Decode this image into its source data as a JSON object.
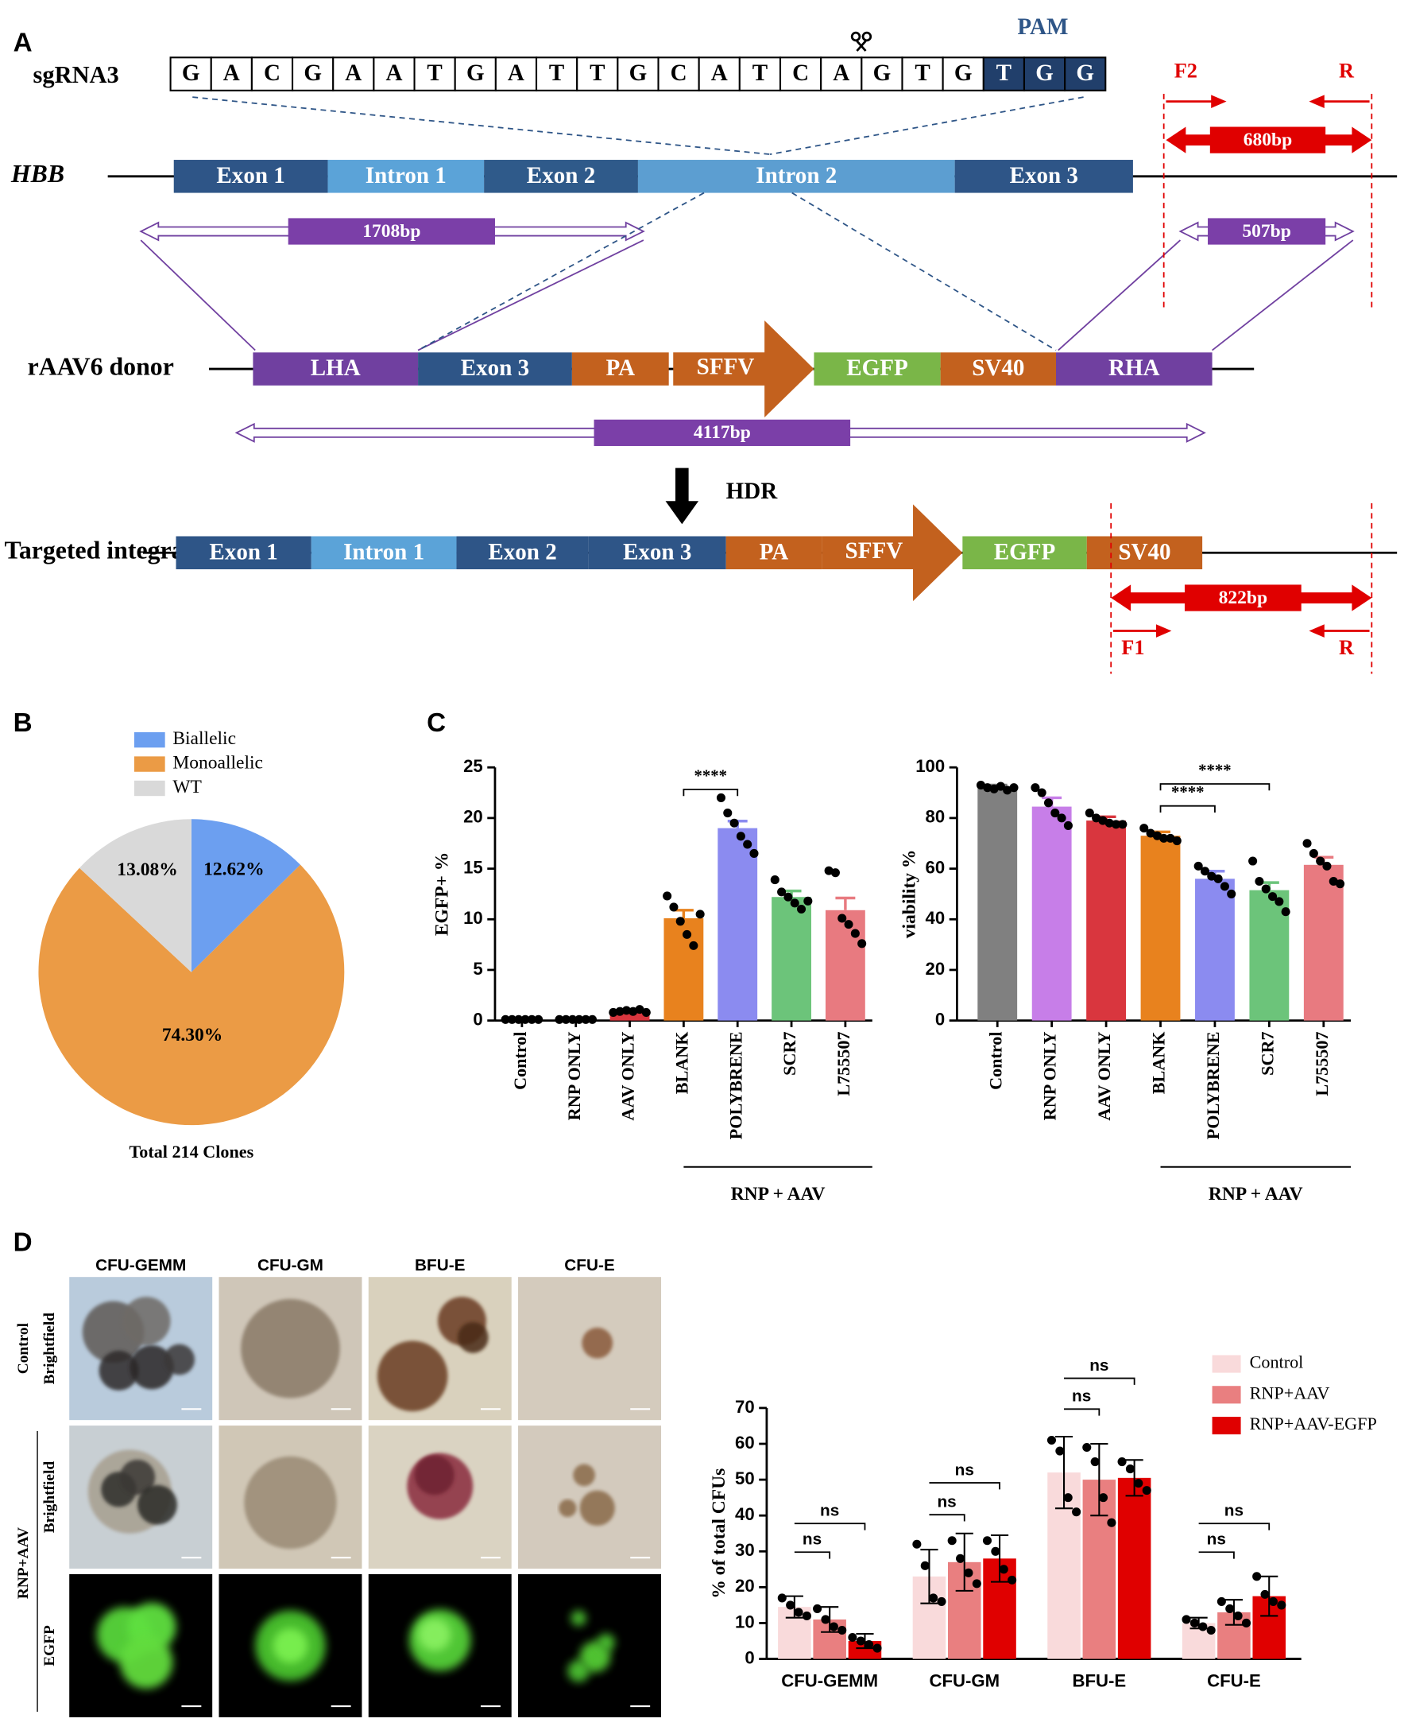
{
  "panel_labels": [
    "A",
    "B",
    "C",
    "D"
  ],
  "diagram": {
    "sgrna_label": "sgRNA3",
    "sequence": [
      "G",
      "A",
      "C",
      "G",
      "A",
      "A",
      "T",
      "G",
      "A",
      "T",
      "T",
      "G",
      "C",
      "A",
      "T",
      "C",
      "A",
      "G",
      "T",
      "G"
    ],
    "pam_sequence": [
      "T",
      "G",
      "G"
    ],
    "pam_label": "PAM",
    "hbb": {
      "label": "HBB",
      "segments": [
        "Exon 1",
        "Intron 1",
        "Exon 2",
        "Intron 2",
        "Exon 3"
      ]
    },
    "donor": {
      "label": "rAAV6 donor",
      "segments": [
        "LHA",
        "Exon 3",
        "PA",
        "SFFV",
        "EGFP",
        "SV40",
        "RHA"
      ]
    },
    "hdr_label": "HDR",
    "integration": {
      "label": "Targeted integration",
      "segments": [
        "Exon 1",
        "Intron 1",
        "Exon 2",
        "Exon 3",
        "PA",
        "SFFV",
        "EGFP",
        "SV40"
      ]
    },
    "primers_top": [
      "F2",
      "R"
    ],
    "amplicon_top": "680bp",
    "arm_lengths": [
      "1708bp",
      "507bp"
    ],
    "donor_length": "4117bp",
    "primers_bottom": [
      "F1",
      "R"
    ],
    "amplicon_bottom": "822bp"
  },
  "chart_data": [
    {
      "type": "pie",
      "categories": [
        "Biallelic",
        "Monoallelic",
        "WT"
      ],
      "values": [
        12.62,
        74.3,
        13.08
      ],
      "value_labels": [
        "12.62%",
        "74.30%",
        "13.08%"
      ],
      "colors": [
        "#6c9ff0",
        "#eb9b45",
        "#d9d9d9"
      ],
      "caption": "Total 214 Clones"
    },
    {
      "type": "bar",
      "ylabel": "EGFP+ %",
      "categories": [
        "Control",
        "RNP ONLY",
        "AAV ONLY",
        "BLANK",
        "POLYBRENE",
        "SCR7",
        "L755507"
      ],
      "values": [
        0.1,
        0.1,
        0.9,
        10.1,
        19.0,
        12.2,
        10.9
      ],
      "errors": [
        0.05,
        0.05,
        0.1,
        0.8,
        0.7,
        0.6,
        1.2
      ],
      "points": [
        [
          0.1,
          0.1,
          0.1,
          0.1,
          0.1,
          0.1
        ],
        [
          0.1,
          0.1,
          0.1,
          0.1,
          0.1,
          0.1
        ],
        [
          0.8,
          0.9,
          1.0,
          0.9,
          1.1,
          0.8
        ],
        [
          12.3,
          11.2,
          9.8,
          8.5,
          7.4,
          10.5
        ],
        [
          22.0,
          20.5,
          19.5,
          18.2,
          17.4,
          16.5
        ],
        [
          13.9,
          12.7,
          12.2,
          11.6,
          11.0,
          11.8
        ],
        [
          14.8,
          14.6,
          10.1,
          9.5,
          8.6,
          7.6
        ]
      ],
      "colors": [
        "#808080",
        "#c77ee8",
        "#d9363e",
        "#e8821e",
        "#8b8bf0",
        "#6cc47a",
        "#e87a80"
      ],
      "ylim": [
        0,
        25
      ],
      "yticks": [
        0,
        5,
        10,
        15,
        20,
        25
      ],
      "group_label": "RNP + AAV",
      "annotations": [
        "****"
      ]
    },
    {
      "type": "bar",
      "ylabel": "viability %",
      "categories": [
        "Control",
        "RNP ONLY",
        "AAV ONLY",
        "BLANK",
        "POLYBRENE",
        "SCR7",
        "L755507"
      ],
      "values": [
        92,
        84.5,
        79,
        73,
        56,
        51.5,
        61.5
      ],
      "errors": [
        1,
        3.5,
        1.5,
        1.5,
        3,
        3,
        3
      ],
      "points": [
        [
          93,
          92,
          91.5,
          92.5,
          91,
          92
        ],
        [
          92,
          90,
          86,
          82,
          80,
          77
        ],
        [
          82,
          80,
          79,
          78,
          77.5,
          77.5
        ],
        [
          76,
          74,
          73,
          72,
          72,
          71
        ],
        [
          61,
          59,
          57,
          56,
          53,
          50
        ],
        [
          63,
          55,
          52,
          49,
          47,
          43
        ],
        [
          70,
          66,
          63,
          61,
          55,
          54
        ]
      ],
      "colors": [
        "#808080",
        "#c77ee8",
        "#d9363e",
        "#e8821e",
        "#8b8bf0",
        "#6cc47a",
        "#e87a80"
      ],
      "ylim": [
        0,
        100
      ],
      "yticks": [
        0,
        20,
        40,
        60,
        80,
        100
      ],
      "group_label": "RNP + AAV",
      "annotations": [
        "****",
        "****"
      ]
    },
    {
      "type": "grouped_bar",
      "ylabel": "% of total CFUs",
      "categories": [
        "CFU-GEMM",
        "CFU-GM",
        "BFU-E",
        "CFU-E"
      ],
      "series": [
        {
          "name": "Control",
          "color": "#f9dadb",
          "values": [
            14.5,
            23,
            52,
            10
          ],
          "errors": [
            3,
            7.5,
            10,
            1.5
          ],
          "points": [
            [
              17,
              15,
              13,
              12
            ],
            [
              32,
              26,
              17,
              16
            ],
            [
              61,
              58,
              45,
              41
            ],
            [
              11,
              10,
              9,
              8
            ]
          ]
        },
        {
          "name": "RNP+AAV",
          "color": "#e97f80",
          "values": [
            11,
            27,
            50,
            13
          ],
          "errors": [
            3.5,
            8,
            10,
            3.5
          ],
          "points": [
            [
              14,
              11,
              9,
              8
            ],
            [
              33,
              28,
              24,
              21
            ],
            [
              59,
              55,
              45,
              38
            ],
            [
              16,
              14,
              12,
              10
            ]
          ]
        },
        {
          "name": "RNP+AAV-EGFP",
          "color": "#e00000",
          "values": [
            5,
            28,
            50.5,
            17.5
          ],
          "errors": [
            2,
            6.5,
            5,
            5.5
          ],
          "points": [
            [
              6,
              5,
              4,
              3
            ],
            [
              33,
              30,
              25,
              22
            ],
            [
              55,
              53,
              49,
              47
            ],
            [
              23,
              18,
              16,
              15
            ]
          ]
        }
      ],
      "ylim": [
        0,
        70
      ],
      "yticks": [
        0,
        10,
        20,
        30,
        40,
        50,
        60,
        70
      ],
      "legend": "upper right",
      "annotations": [
        "ns",
        "ns",
        "ns",
        "ns",
        "ns",
        "ns",
        "ns",
        "ns"
      ]
    }
  ],
  "micrographs": {
    "columns": [
      "CFU-GEMM",
      "CFU-GM",
      "BFU-E",
      "CFU-E"
    ],
    "rows": [
      "Control",
      "RNP+AAV"
    ],
    "channels": [
      "Brightfield",
      "Brightfield",
      "EGFP"
    ]
  }
}
